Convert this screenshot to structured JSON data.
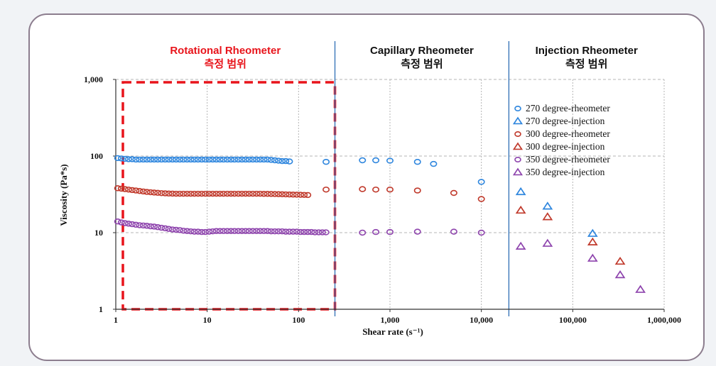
{
  "chart_data": {
    "type": "scatter",
    "title": "",
    "xlabel": "Shear rate (s⁻¹)",
    "ylabel": "Viscosity (Pa*s)",
    "x_scale": "log",
    "y_scale": "log",
    "xlim": [
      1,
      1000000
    ],
    "ylim": [
      1,
      1000
    ],
    "x_ticks": [
      1,
      10,
      100,
      1000,
      10000,
      100000,
      1000000
    ],
    "x_tick_labels": [
      "1",
      "10",
      "100",
      "1,000",
      "10,000",
      "100,000",
      "1,000,000"
    ],
    "y_ticks": [
      1,
      10,
      100,
      1000
    ],
    "y_tick_labels": [
      "1",
      "10",
      "100",
      "1,000"
    ],
    "grid": true,
    "legend_position": "top-right",
    "regions": [
      {
        "name": "Rotational Rheometer",
        "subtitle": "측정 범위",
        "x_range": [
          1,
          250
        ],
        "color": "#e8141b",
        "highlight": true
      },
      {
        "name": "Capillary Rheometer",
        "subtitle": "측정 범위",
        "x_range": [
          250,
          20000
        ],
        "color": "#111111",
        "highlight": false
      },
      {
        "name": "Injection Rheometer",
        "subtitle": "측정 범위",
        "x_range": [
          20000,
          1000000
        ],
        "color": "#111111",
        "highlight": false
      }
    ],
    "series": [
      {
        "name": "270 degree-rheometer",
        "marker": "circle",
        "color": "#2e86de",
        "points": [
          [
            1.05,
            94
          ],
          [
            1.15,
            93
          ],
          [
            1.26,
            92
          ],
          [
            1.38,
            91
          ],
          [
            1.51,
            91
          ],
          [
            1.66,
            90
          ],
          [
            1.82,
            90
          ],
          [
            2.0,
            90
          ],
          [
            2.19,
            90
          ],
          [
            2.4,
            90
          ],
          [
            2.63,
            90
          ],
          [
            2.88,
            90
          ],
          [
            3.16,
            90
          ],
          [
            3.47,
            90
          ],
          [
            3.8,
            90
          ],
          [
            4.17,
            90
          ],
          [
            4.57,
            90
          ],
          [
            5.01,
            90
          ],
          [
            5.5,
            90
          ],
          [
            6.03,
            90
          ],
          [
            6.61,
            90
          ],
          [
            7.24,
            90
          ],
          [
            7.94,
            90
          ],
          [
            8.71,
            90
          ],
          [
            9.55,
            90
          ],
          [
            10.5,
            90
          ],
          [
            11.5,
            90
          ],
          [
            12.6,
            90
          ],
          [
            13.8,
            90
          ],
          [
            15.1,
            90
          ],
          [
            16.6,
            90
          ],
          [
            18.2,
            90
          ],
          [
            19.9,
            90
          ],
          [
            21.9,
            90
          ],
          [
            24.0,
            90
          ],
          [
            26.3,
            90
          ],
          [
            28.8,
            90
          ],
          [
            31.6,
            90
          ],
          [
            34.7,
            90
          ],
          [
            38.0,
            90
          ],
          [
            41.7,
            90
          ],
          [
            45.7,
            90
          ],
          [
            50.1,
            89
          ],
          [
            55.0,
            88
          ],
          [
            60.3,
            87
          ],
          [
            66.1,
            86
          ],
          [
            72.4,
            86
          ],
          [
            79.4,
            85
          ],
          [
            200,
            84
          ],
          [
            500,
            88
          ],
          [
            700,
            88
          ],
          [
            1000,
            87
          ],
          [
            2000,
            84
          ],
          [
            3000,
            79
          ],
          [
            10000,
            46
          ]
        ]
      },
      {
        "name": "270 degree-injection",
        "marker": "triangle",
        "color": "#2e86de",
        "points": [
          [
            27000,
            34
          ],
          [
            53000,
            22
          ],
          [
            165000,
            9.7
          ]
        ]
      },
      {
        "name": "300 degree-rheometer",
        "marker": "circle",
        "color": "#c0392b",
        "points": [
          [
            1.05,
            38
          ],
          [
            1.15,
            37.5
          ],
          [
            1.26,
            37
          ],
          [
            1.38,
            36.5
          ],
          [
            1.51,
            36
          ],
          [
            1.66,
            35.5
          ],
          [
            1.82,
            35
          ],
          [
            2.0,
            34.5
          ],
          [
            2.19,
            34
          ],
          [
            2.4,
            33.7
          ],
          [
            2.63,
            33.4
          ],
          [
            2.88,
            33.1
          ],
          [
            3.16,
            32.8
          ],
          [
            3.47,
            32.6
          ],
          [
            3.8,
            32.4
          ],
          [
            4.17,
            32.3
          ],
          [
            4.57,
            32.2
          ],
          [
            5.01,
            32.2
          ],
          [
            5.5,
            32.2
          ],
          [
            6.03,
            32.2
          ],
          [
            6.61,
            32.2
          ],
          [
            7.24,
            32.2
          ],
          [
            7.94,
            32.2
          ],
          [
            8.71,
            32.2
          ],
          [
            9.55,
            32.2
          ],
          [
            10.5,
            32.2
          ],
          [
            11.5,
            32.2
          ],
          [
            12.6,
            32.2
          ],
          [
            13.8,
            32.2
          ],
          [
            15.1,
            32.2
          ],
          [
            16.6,
            32.2
          ],
          [
            18.2,
            32.2
          ],
          [
            19.9,
            32.2
          ],
          [
            21.9,
            32.2
          ],
          [
            24.0,
            32.2
          ],
          [
            26.3,
            32.2
          ],
          [
            28.8,
            32.2
          ],
          [
            31.6,
            32.2
          ],
          [
            34.7,
            32.2
          ],
          [
            38.0,
            32.2
          ],
          [
            41.7,
            32.1
          ],
          [
            45.7,
            32.1
          ],
          [
            50.1,
            32
          ],
          [
            55.0,
            31.9
          ],
          [
            60.3,
            31.8
          ],
          [
            66.1,
            31.7
          ],
          [
            72.4,
            31.6
          ],
          [
            79.4,
            31.5
          ],
          [
            87.1,
            31.4
          ],
          [
            95.5,
            31.3
          ],
          [
            105,
            31.2
          ],
          [
            115,
            31.1
          ],
          [
            126,
            31.0
          ],
          [
            200,
            36.5
          ],
          [
            500,
            37
          ],
          [
            700,
            36.5
          ],
          [
            1000,
            36.5
          ],
          [
            2000,
            35.5
          ],
          [
            5000,
            33
          ],
          [
            10000,
            27.5
          ]
        ]
      },
      {
        "name": "300 degree-injection",
        "marker": "triangle",
        "color": "#c0392b",
        "points": [
          [
            27000,
            19.5
          ],
          [
            53000,
            16
          ],
          [
            165000,
            7.5
          ],
          [
            330000,
            4.2
          ]
        ]
      },
      {
        "name": "350 degree-rheometer",
        "marker": "circle",
        "color": "#8e44ad",
        "points": [
          [
            1.05,
            14
          ],
          [
            1.15,
            13.6
          ],
          [
            1.26,
            13.3
          ],
          [
            1.38,
            13.1
          ],
          [
            1.51,
            12.9
          ],
          [
            1.66,
            12.7
          ],
          [
            1.82,
            12.5
          ],
          [
            2.0,
            12.4
          ],
          [
            2.19,
            12.3
          ],
          [
            2.4,
            12.1
          ],
          [
            2.63,
            12.0
          ],
          [
            2.88,
            11.8
          ],
          [
            3.16,
            11.6
          ],
          [
            3.47,
            11.4
          ],
          [
            3.8,
            11.2
          ],
          [
            4.17,
            11.0
          ],
          [
            4.57,
            10.9
          ],
          [
            5.01,
            10.8
          ],
          [
            5.5,
            10.6
          ],
          [
            6.03,
            10.5
          ],
          [
            6.61,
            10.4
          ],
          [
            7.24,
            10.3
          ],
          [
            7.94,
            10.3
          ],
          [
            8.71,
            10.2
          ],
          [
            9.55,
            10.2
          ],
          [
            10.5,
            10.3
          ],
          [
            11.5,
            10.4
          ],
          [
            12.6,
            10.5
          ],
          [
            13.8,
            10.5
          ],
          [
            15.1,
            10.5
          ],
          [
            16.6,
            10.5
          ],
          [
            18.2,
            10.5
          ],
          [
            19.9,
            10.5
          ],
          [
            21.9,
            10.5
          ],
          [
            24.0,
            10.5
          ],
          [
            26.3,
            10.5
          ],
          [
            28.8,
            10.5
          ],
          [
            31.6,
            10.5
          ],
          [
            34.7,
            10.5
          ],
          [
            38.0,
            10.5
          ],
          [
            41.7,
            10.5
          ],
          [
            45.7,
            10.5
          ],
          [
            50.1,
            10.4
          ],
          [
            55.0,
            10.4
          ],
          [
            60.3,
            10.4
          ],
          [
            66.1,
            10.4
          ],
          [
            72.4,
            10.3
          ],
          [
            79.4,
            10.3
          ],
          [
            87.1,
            10.3
          ],
          [
            95.5,
            10.3
          ],
          [
            105,
            10.2
          ],
          [
            115,
            10.2
          ],
          [
            126,
            10.2
          ],
          [
            138,
            10.2
          ],
          [
            151,
            10.1
          ],
          [
            166,
            10.1
          ],
          [
            182,
            10.1
          ],
          [
            199,
            10.1
          ],
          [
            500,
            10.0
          ],
          [
            700,
            10.2
          ],
          [
            1000,
            10.2
          ],
          [
            2000,
            10.3
          ],
          [
            5000,
            10.3
          ],
          [
            10000,
            10.0
          ]
        ]
      },
      {
        "name": "350 degree-injection",
        "marker": "triangle",
        "color": "#8e44ad",
        "points": [
          [
            27000,
            6.6
          ],
          [
            53000,
            7.2
          ],
          [
            165000,
            4.6
          ],
          [
            330000,
            2.8
          ],
          [
            550000,
            1.8
          ]
        ]
      }
    ]
  }
}
